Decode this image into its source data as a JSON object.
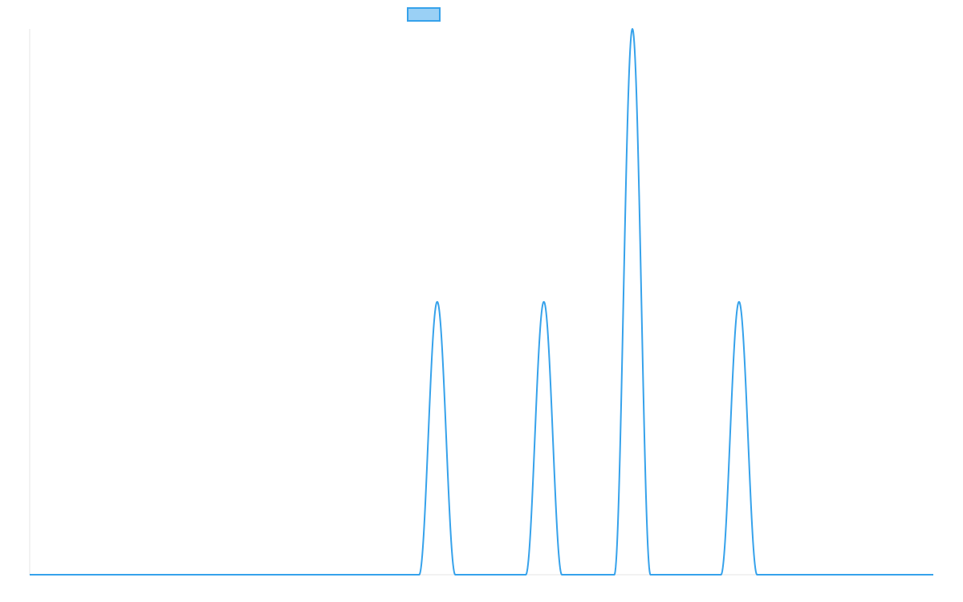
{
  "chart_data": {
    "type": "line",
    "title": "",
    "xlabel": "",
    "ylabel": "",
    "grid": false,
    "legend": {
      "placement": "top-center",
      "entries": [
        {
          "name": "",
          "color": "#36a2eb",
          "fill": "#9ad0f5"
        }
      ]
    },
    "xlim": [
      0,
      100
    ],
    "ylim": [
      0,
      1
    ],
    "series": [
      {
        "name": "",
        "color": "#36a2eb",
        "peaks": [
          {
            "x_center": 45.1,
            "half_width": 2.0,
            "height": 0.5
          },
          {
            "x_center": 56.9,
            "half_width": 2.0,
            "height": 0.5
          },
          {
            "x_center": 66.7,
            "half_width": 2.0,
            "height": 1.0
          },
          {
            "x_center": 78.5,
            "half_width": 2.0,
            "height": 0.5
          }
        ]
      }
    ]
  }
}
